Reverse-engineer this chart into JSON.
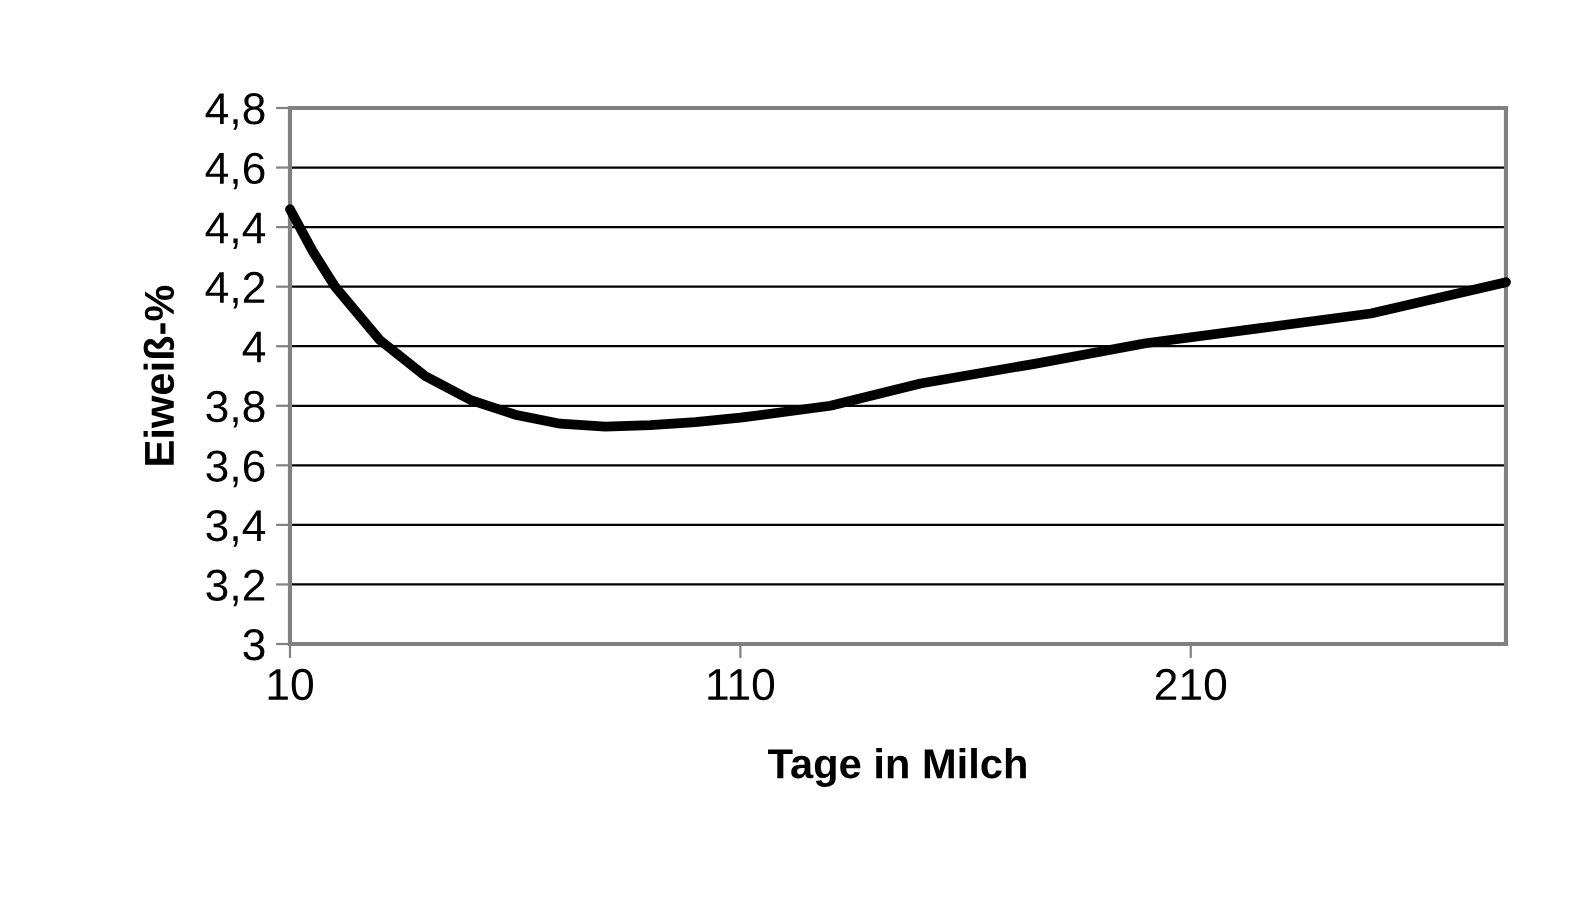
{
  "chart_data": {
    "type": "line",
    "xlabel": "Tage in Milch",
    "ylabel": "Eiweiß-%",
    "x": [
      10,
      15,
      20,
      30,
      40,
      50,
      60,
      70,
      80,
      90,
      100,
      110,
      130,
      150,
      175,
      200,
      225,
      250,
      280
    ],
    "series": [
      {
        "color": "#000000",
        "values": [
          4.46,
          4.32,
          4.2,
          4.02,
          3.9,
          3.82,
          3.77,
          3.74,
          3.73,
          3.735,
          3.745,
          3.76,
          3.8,
          3.875,
          3.94,
          4.01,
          4.06,
          4.11,
          4.215
        ]
      }
    ],
    "xlim": [
      10,
      280
    ],
    "xticks": [
      10,
      110,
      210
    ],
    "ylim": [
      3,
      4.8
    ],
    "yticks": [
      {
        "value": 3,
        "label": "3"
      },
      {
        "value": 3.2,
        "label": "3,2"
      },
      {
        "value": 3.4,
        "label": "3,4"
      },
      {
        "value": 3.6,
        "label": "3,6"
      },
      {
        "value": 3.8,
        "label": "3,8"
      },
      {
        "value": 4,
        "label": "4"
      },
      {
        "value": 4.2,
        "label": "4,2"
      },
      {
        "value": 4.4,
        "label": "4,4"
      },
      {
        "value": 4.6,
        "label": "4,6"
      },
      {
        "value": 4.8,
        "label": "4,8"
      }
    ],
    "grid": "y",
    "marker": "none",
    "line_style": "solid"
  }
}
